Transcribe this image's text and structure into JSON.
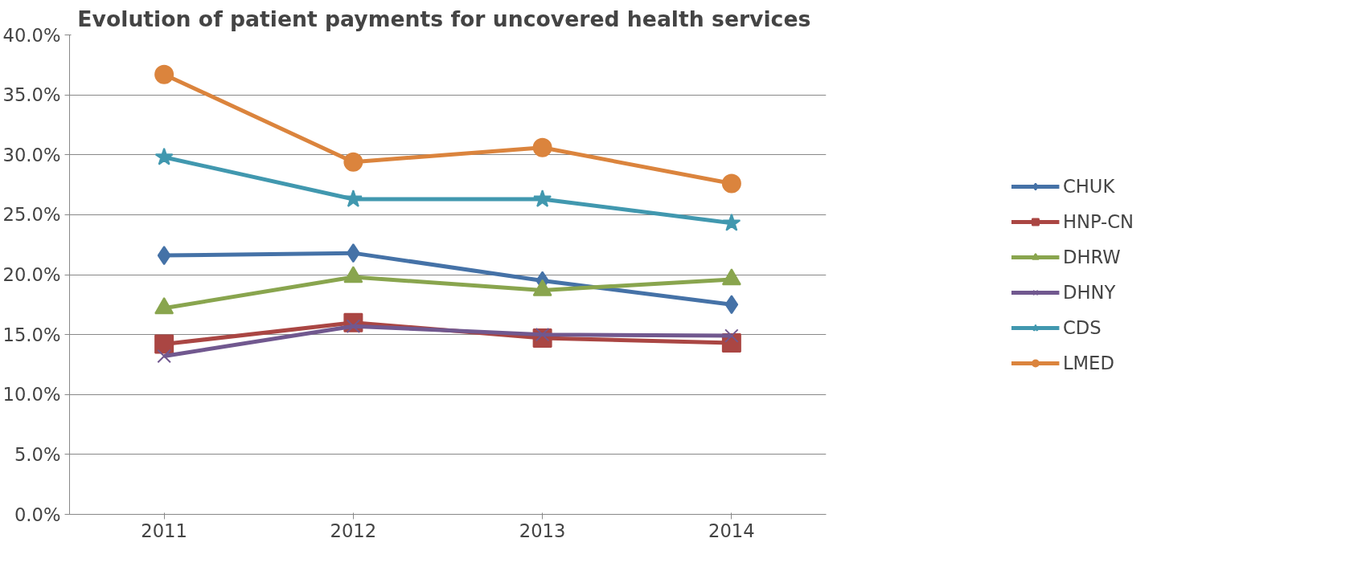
{
  "chart_data": {
    "type": "line",
    "title": "Evolution of  patient payments for uncovered health services",
    "categories": [
      "2011",
      "2012",
      "2013",
      "2014"
    ],
    "ylim": [
      0,
      40
    ],
    "yticks": [
      {
        "value": 0,
        "label": "0.0%"
      },
      {
        "value": 5,
        "label": "5.0%"
      },
      {
        "value": 10,
        "label": "10.0%"
      },
      {
        "value": 15,
        "label": "15.0%"
      },
      {
        "value": 20,
        "label": "20.0%"
      },
      {
        "value": 25,
        "label": "25.0%"
      },
      {
        "value": 30,
        "label": "30.0%"
      },
      {
        "value": 35,
        "label": "35.0%"
      },
      {
        "value": 40,
        "label": "40.0%"
      }
    ],
    "grid": "y",
    "legend": "right",
    "line_style": "solid",
    "series": [
      {
        "name": "CHUK",
        "color": "#4572a7",
        "marker": "diamond",
        "values": [
          21.6,
          21.8,
          19.5,
          17.5
        ]
      },
      {
        "name": "HNP-CN",
        "color": "#aa4643",
        "marker": "square",
        "values": [
          14.2,
          16.0,
          14.7,
          14.3
        ]
      },
      {
        "name": "DHRW",
        "color": "#89a54e",
        "marker": "triangle",
        "values": [
          17.2,
          19.8,
          18.7,
          19.6
        ]
      },
      {
        "name": "DHNY",
        "color": "#71588f",
        "marker": "cross",
        "values": [
          13.2,
          15.7,
          15.0,
          14.9
        ]
      },
      {
        "name": "CDS",
        "color": "#4198af",
        "marker": "star",
        "values": [
          29.8,
          26.3,
          26.3,
          24.3
        ]
      },
      {
        "name": "LMED",
        "color": "#db843d",
        "marker": "circle",
        "values": [
          36.7,
          29.4,
          30.6,
          27.6
        ]
      }
    ]
  }
}
